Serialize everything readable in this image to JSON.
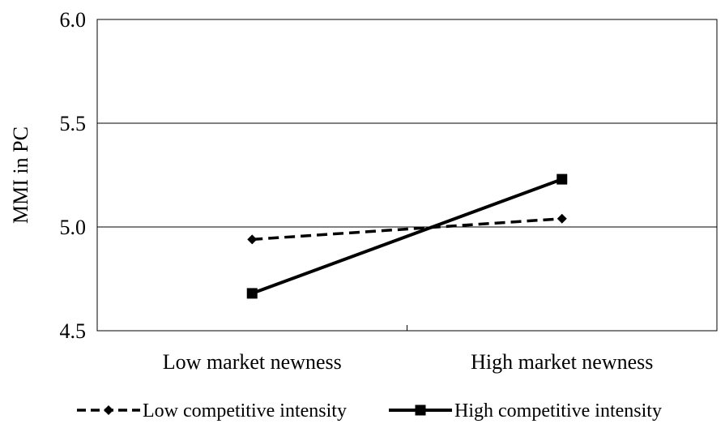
{
  "chart_data": {
    "type": "line",
    "title": "",
    "xlabel": "",
    "ylabel": "MMI in PC",
    "categories": [
      "Low market newness",
      "High market newness"
    ],
    "ylim": [
      4.5,
      6.0
    ],
    "yticks": [
      "4.5",
      "5.0",
      "5.5",
      "6.0"
    ],
    "grid": "horizontal",
    "legend_position": "bottom",
    "series": [
      {
        "name": "Low competitive intensity",
        "values": [
          4.94,
          5.04
        ],
        "line_style": "dashed",
        "marker": "diamond",
        "color": "#000000"
      },
      {
        "name": "High competitive intensity",
        "values": [
          4.68,
          5.23
        ],
        "line_style": "solid",
        "marker": "square",
        "color": "#000000"
      }
    ]
  }
}
